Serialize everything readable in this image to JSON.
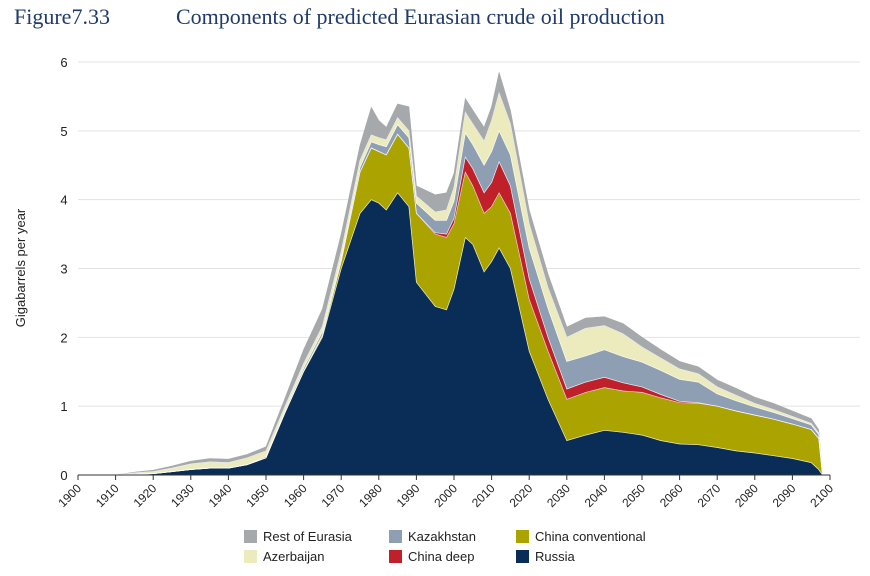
{
  "figure": {
    "label": "Figure7.33",
    "title": "Components of predicted Eurasian crude oil production"
  },
  "chart_data": {
    "type": "area",
    "stacked": true,
    "title": "Components of predicted Eurasian crude oil production",
    "xlabel": "",
    "ylabel": "Gigabarrels per year",
    "xlim": [
      1900,
      2100
    ],
    "ylim": [
      0,
      6
    ],
    "x_ticks": [
      1900,
      1910,
      1920,
      1930,
      1940,
      1950,
      1960,
      1970,
      1980,
      1990,
      2000,
      2010,
      2020,
      2030,
      2040,
      2050,
      2060,
      2070,
      2080,
      2090,
      2100
    ],
    "y_ticks": [
      0,
      1,
      2,
      3,
      4,
      5,
      6
    ],
    "grid": "horizontal",
    "legend_position": "bottom",
    "x": [
      1900,
      1910,
      1915,
      1920,
      1925,
      1930,
      1935,
      1940,
      1945,
      1950,
      1955,
      1960,
      1965,
      1970,
      1975,
      1978,
      1980,
      1982,
      1985,
      1988,
      1990,
      1995,
      1998,
      2000,
      2003,
      2005,
      2008,
      2010,
      2012,
      2015,
      2020,
      2025,
      2030,
      2035,
      2040,
      2045,
      2050,
      2055,
      2060,
      2065,
      2070,
      2075,
      2080,
      2085,
      2090,
      2095,
      2097,
      2098
    ],
    "series": [
      {
        "name": "Russia",
        "color": "#0a2d57",
        "values": [
          0,
          0,
          0.01,
          0.02,
          0.05,
          0.08,
          0.1,
          0.1,
          0.15,
          0.25,
          0.9,
          1.5,
          2.0,
          3.0,
          3.8,
          4.0,
          3.95,
          3.85,
          4.1,
          3.9,
          2.8,
          2.45,
          2.4,
          2.7,
          3.45,
          3.35,
          2.95,
          3.1,
          3.3,
          3.0,
          1.8,
          1.1,
          0.5,
          0.58,
          0.65,
          0.62,
          0.58,
          0.5,
          0.45,
          0.44,
          0.4,
          0.35,
          0.32,
          0.28,
          0.24,
          0.18,
          0.08,
          0.0
        ]
      },
      {
        "name": "China conventional",
        "color": "#aaa300",
        "values": [
          0,
          0,
          0,
          0,
          0,
          0,
          0,
          0,
          0,
          0,
          0,
          0.01,
          0.03,
          0.1,
          0.6,
          0.75,
          0.75,
          0.8,
          0.85,
          0.85,
          1.0,
          1.05,
          1.05,
          0.95,
          0.95,
          0.85,
          0.85,
          0.8,
          0.8,
          0.8,
          0.75,
          0.7,
          0.6,
          0.62,
          0.62,
          0.6,
          0.62,
          0.62,
          0.6,
          0.6,
          0.6,
          0.58,
          0.55,
          0.53,
          0.5,
          0.48,
          0.45,
          0.0
        ]
      },
      {
        "name": "China deep",
        "color": "#c0202a",
        "values": [
          0,
          0,
          0,
          0,
          0,
          0,
          0,
          0,
          0,
          0,
          0,
          0,
          0,
          0,
          0,
          0,
          0,
          0,
          0,
          0,
          0,
          0.02,
          0.05,
          0.08,
          0.22,
          0.25,
          0.3,
          0.35,
          0.45,
          0.4,
          0.3,
          0.2,
          0.15,
          0.15,
          0.15,
          0.12,
          0.08,
          0.05,
          0.02,
          0.01,
          0,
          0,
          0,
          0,
          0,
          0,
          0,
          0
        ]
      },
      {
        "name": "Kazakhstan",
        "color": "#8e9fb4",
        "values": [
          0,
          0,
          0,
          0,
          0,
          0,
          0,
          0,
          0,
          0.02,
          0.03,
          0.04,
          0.05,
          0.05,
          0.07,
          0.09,
          0.1,
          0.12,
          0.14,
          0.15,
          0.15,
          0.18,
          0.2,
          0.25,
          0.35,
          0.35,
          0.4,
          0.45,
          0.45,
          0.45,
          0.45,
          0.42,
          0.4,
          0.38,
          0.4,
          0.38,
          0.36,
          0.35,
          0.32,
          0.3,
          0.18,
          0.15,
          0.12,
          0.1,
          0.08,
          0.07,
          0.06,
          0.0
        ]
      },
      {
        "name": "Azerbaijan",
        "color": "#ecebbd",
        "values": [
          0,
          0,
          0.02,
          0.03,
          0.05,
          0.08,
          0.09,
          0.08,
          0.1,
          0.08,
          0.06,
          0.07,
          0.08,
          0.1,
          0.1,
          0.1,
          0.1,
          0.1,
          0.1,
          0.1,
          0.1,
          0.12,
          0.15,
          0.2,
          0.3,
          0.3,
          0.35,
          0.45,
          0.55,
          0.45,
          0.35,
          0.3,
          0.35,
          0.4,
          0.35,
          0.33,
          0.22,
          0.18,
          0.15,
          0.12,
          0.1,
          0.08,
          0.05,
          0.04,
          0.03,
          0.02,
          0.02,
          0.0
        ]
      },
      {
        "name": "Rest of Eurasia",
        "color": "#a6a9ab",
        "values": [
          0,
          0,
          0.01,
          0.02,
          0.03,
          0.04,
          0.05,
          0.05,
          0.05,
          0.06,
          0.12,
          0.2,
          0.25,
          0.25,
          0.22,
          0.4,
          0.25,
          0.18,
          0.2,
          0.35,
          0.15,
          0.25,
          0.25,
          0.2,
          0.2,
          0.2,
          0.2,
          0.2,
          0.3,
          0.2,
          0.2,
          0.2,
          0.15,
          0.15,
          0.13,
          0.15,
          0.14,
          0.12,
          0.11,
          0.1,
          0.1,
          0.1,
          0.09,
          0.09,
          0.08,
          0.07,
          0.05,
          0.0
        ]
      }
    ]
  },
  "legend": {
    "items": [
      {
        "label": "Rest of Eurasia",
        "color": "#a6a9ab"
      },
      {
        "label": "Kazakhstan",
        "color": "#8e9fb4"
      },
      {
        "label": "China conventional",
        "color": "#aaa300"
      },
      {
        "label": "Azerbaijan",
        "color": "#ecebbd"
      },
      {
        "label": "China deep",
        "color": "#c0202a"
      },
      {
        "label": "Russia",
        "color": "#0a2d57"
      }
    ]
  }
}
